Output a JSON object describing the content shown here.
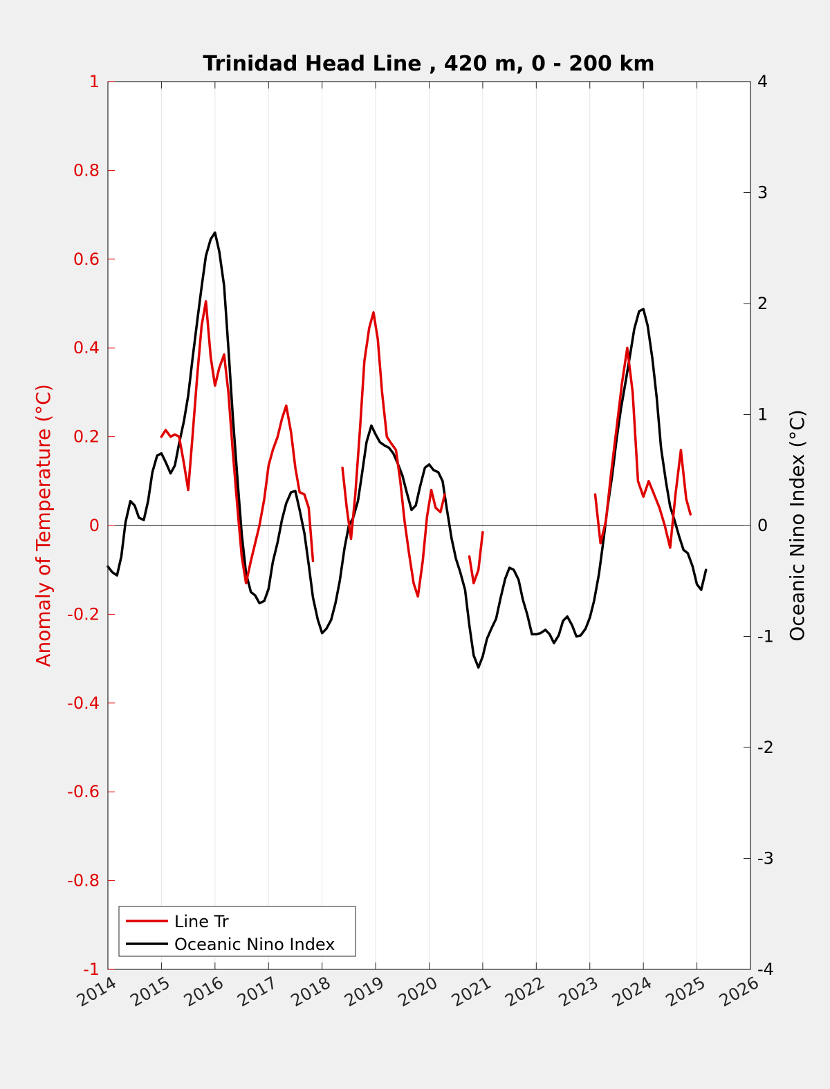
{
  "chart_data": {
    "type": "line",
    "title": "Trinidad Head Line , 420 m, 0 - 200 km",
    "ylabel_left": "Anomaly of Temperature (°C)",
    "ylabel_right": "Oceanic Nino Index (°C)",
    "xlim": [
      2014,
      2026
    ],
    "ylim_left": [
      -1,
      1
    ],
    "ylim_right": [
      -4,
      4
    ],
    "x_ticks": [
      "2014",
      "2015",
      "2016",
      "2017",
      "2018",
      "2019",
      "2020",
      "2021",
      "2022",
      "2023",
      "2024",
      "2025",
      "2026"
    ],
    "y_ticks_left": [
      "1",
      "0.8",
      "0.6",
      "0.4",
      "0.2",
      "0",
      "-0.2",
      "-0.4",
      "-0.6",
      "-0.8",
      "-1"
    ],
    "y_ticks_right": [
      "4",
      "3",
      "2",
      "1",
      "0",
      "-1",
      "-2",
      "-3",
      "-4"
    ],
    "grid": "vertical",
    "zero_line": true,
    "legend_position": "bottom-left",
    "colors": {
      "line_tr": "#e00000",
      "oni": "#000000"
    },
    "series": [
      {
        "name": "Line Tr",
        "axis": "left",
        "color": "#e00000",
        "segments": [
          [
            [
              2015.0,
              0.2
            ],
            [
              2015.08,
              0.215
            ],
            [
              2015.17,
              0.2
            ],
            [
              2015.25,
              0.205
            ],
            [
              2015.33,
              0.2
            ],
            [
              2015.42,
              0.14
            ],
            [
              2015.5,
              0.08
            ],
            [
              2015.58,
              0.2
            ],
            [
              2015.67,
              0.34
            ],
            [
              2015.75,
              0.45
            ],
            [
              2015.83,
              0.505
            ],
            [
              2015.92,
              0.38
            ],
            [
              2016.0,
              0.315
            ],
            [
              2016.08,
              0.355
            ],
            [
              2016.17,
              0.385
            ],
            [
              2016.25,
              0.3
            ],
            [
              2016.33,
              0.17
            ],
            [
              2016.42,
              0.04
            ],
            [
              2016.5,
              -0.07
            ],
            [
              2016.58,
              -0.13
            ],
            [
              2016.67,
              -0.08
            ],
            [
              2016.75,
              -0.04
            ],
            [
              2016.83,
              0.0
            ],
            [
              2016.92,
              0.06
            ],
            [
              2017.0,
              0.135
            ],
            [
              2017.08,
              0.17
            ],
            [
              2017.17,
              0.2
            ],
            [
              2017.25,
              0.24
            ],
            [
              2017.33,
              0.27
            ],
            [
              2017.42,
              0.21
            ],
            [
              2017.5,
              0.13
            ],
            [
              2017.58,
              0.075
            ],
            [
              2017.67,
              0.07
            ],
            [
              2017.75,
              0.04
            ],
            [
              2017.83,
              -0.08
            ]
          ],
          [
            [
              2018.38,
              0.13
            ],
            [
              2018.46,
              0.04
            ],
            [
              2018.54,
              -0.03
            ],
            [
              2018.62,
              0.07
            ],
            [
              2018.71,
              0.22
            ],
            [
              2018.79,
              0.37
            ],
            [
              2018.88,
              0.445
            ],
            [
              2018.96,
              0.48
            ],
            [
              2019.04,
              0.42
            ],
            [
              2019.12,
              0.3
            ],
            [
              2019.21,
              0.2
            ],
            [
              2019.29,
              0.185
            ],
            [
              2019.38,
              0.17
            ],
            [
              2019.46,
              0.1
            ],
            [
              2019.54,
              0.01
            ],
            [
              2019.62,
              -0.06
            ],
            [
              2019.71,
              -0.13
            ],
            [
              2019.79,
              -0.16
            ],
            [
              2019.88,
              -0.08
            ],
            [
              2019.96,
              0.02
            ],
            [
              2020.04,
              0.08
            ],
            [
              2020.12,
              0.04
            ],
            [
              2020.21,
              0.03
            ],
            [
              2020.29,
              0.07
            ]
          ],
          [
            [
              2020.75,
              -0.07
            ],
            [
              2020.83,
              -0.13
            ],
            [
              2020.92,
              -0.1
            ],
            [
              2021.0,
              -0.015
            ]
          ],
          [
            [
              2023.1,
              0.07
            ],
            [
              2023.2,
              -0.04
            ],
            [
              2023.3,
              0.01
            ],
            [
              2023.4,
              0.12
            ],
            [
              2023.5,
              0.22
            ],
            [
              2023.6,
              0.32
            ],
            [
              2023.7,
              0.4
            ],
            [
              2023.8,
              0.3
            ],
            [
              2023.9,
              0.1
            ],
            [
              2024.0,
              0.065
            ],
            [
              2024.1,
              0.1
            ],
            [
              2024.2,
              0.07
            ],
            [
              2024.3,
              0.04
            ],
            [
              2024.4,
              0.0
            ],
            [
              2024.5,
              -0.05
            ],
            [
              2024.6,
              0.07
            ],
            [
              2024.7,
              0.17
            ],
            [
              2024.8,
              0.06
            ],
            [
              2024.88,
              0.025
            ]
          ]
        ]
      },
      {
        "name": "Oceanic Nino Index",
        "axis": "right",
        "color": "#000000",
        "segments": [
          [
            [
              2014.0,
              -0.37
            ],
            [
              2014.08,
              -0.42
            ],
            [
              2014.17,
              -0.45
            ],
            [
              2014.25,
              -0.28
            ],
            [
              2014.33,
              0.03
            ],
            [
              2014.42,
              0.22
            ],
            [
              2014.5,
              0.18
            ],
            [
              2014.58,
              0.07
            ],
            [
              2014.67,
              0.05
            ],
            [
              2014.75,
              0.22
            ],
            [
              2014.83,
              0.48
            ],
            [
              2014.92,
              0.63
            ],
            [
              2015.0,
              0.65
            ],
            [
              2015.08,
              0.57
            ],
            [
              2015.17,
              0.47
            ],
            [
              2015.25,
              0.54
            ],
            [
              2015.33,
              0.74
            ],
            [
              2015.42,
              0.94
            ],
            [
              2015.5,
              1.17
            ],
            [
              2015.58,
              1.5
            ],
            [
              2015.67,
              1.85
            ],
            [
              2015.75,
              2.15
            ],
            [
              2015.83,
              2.43
            ],
            [
              2015.92,
              2.58
            ],
            [
              2016.0,
              2.64
            ],
            [
              2016.08,
              2.47
            ],
            [
              2016.17,
              2.16
            ],
            [
              2016.25,
              1.6
            ],
            [
              2016.33,
              1.0
            ],
            [
              2016.42,
              0.42
            ],
            [
              2016.5,
              -0.08
            ],
            [
              2016.58,
              -0.43
            ],
            [
              2016.67,
              -0.6
            ],
            [
              2016.75,
              -0.63
            ],
            [
              2016.83,
              -0.7
            ],
            [
              2016.92,
              -0.68
            ],
            [
              2017.0,
              -0.57
            ],
            [
              2017.08,
              -0.33
            ],
            [
              2017.17,
              -0.15
            ],
            [
              2017.25,
              0.05
            ],
            [
              2017.33,
              0.2
            ],
            [
              2017.42,
              0.3
            ],
            [
              2017.5,
              0.31
            ],
            [
              2017.58,
              0.14
            ],
            [
              2017.67,
              -0.07
            ],
            [
              2017.75,
              -0.35
            ],
            [
              2017.83,
              -0.65
            ],
            [
              2017.92,
              -0.85
            ],
            [
              2018.0,
              -0.97
            ],
            [
              2018.08,
              -0.93
            ],
            [
              2018.17,
              -0.85
            ],
            [
              2018.25,
              -0.7
            ],
            [
              2018.33,
              -0.5
            ],
            [
              2018.42,
              -0.2
            ],
            [
              2018.5,
              0.0
            ],
            [
              2018.58,
              0.07
            ],
            [
              2018.67,
              0.22
            ],
            [
              2018.75,
              0.48
            ],
            [
              2018.83,
              0.75
            ],
            [
              2018.92,
              0.9
            ],
            [
              2019.0,
              0.82
            ],
            [
              2019.08,
              0.75
            ],
            [
              2019.17,
              0.72
            ],
            [
              2019.25,
              0.7
            ],
            [
              2019.33,
              0.65
            ],
            [
              2019.42,
              0.55
            ],
            [
              2019.5,
              0.45
            ],
            [
              2019.58,
              0.3
            ],
            [
              2019.67,
              0.14
            ],
            [
              2019.75,
              0.18
            ],
            [
              2019.83,
              0.35
            ],
            [
              2019.92,
              0.52
            ],
            [
              2020.0,
              0.55
            ],
            [
              2020.08,
              0.5
            ],
            [
              2020.17,
              0.48
            ],
            [
              2020.25,
              0.4
            ],
            [
              2020.33,
              0.15
            ],
            [
              2020.42,
              -0.12
            ],
            [
              2020.5,
              -0.3
            ],
            [
              2020.58,
              -0.42
            ],
            [
              2020.67,
              -0.58
            ],
            [
              2020.75,
              -0.9
            ],
            [
              2020.83,
              -1.17
            ],
            [
              2020.92,
              -1.28
            ],
            [
              2021.0,
              -1.18
            ],
            [
              2021.08,
              -1.02
            ],
            [
              2021.17,
              -0.92
            ],
            [
              2021.25,
              -0.84
            ],
            [
              2021.33,
              -0.66
            ],
            [
              2021.42,
              -0.48
            ],
            [
              2021.5,
              -0.38
            ],
            [
              2021.58,
              -0.4
            ],
            [
              2021.67,
              -0.49
            ],
            [
              2021.75,
              -0.67
            ],
            [
              2021.83,
              -0.8
            ],
            [
              2021.92,
              -0.98
            ],
            [
              2022.0,
              -0.98
            ],
            [
              2022.08,
              -0.97
            ],
            [
              2022.17,
              -0.94
            ],
            [
              2022.25,
              -0.98
            ],
            [
              2022.33,
              -1.06
            ],
            [
              2022.42,
              -0.99
            ],
            [
              2022.5,
              -0.86
            ],
            [
              2022.58,
              -0.82
            ],
            [
              2022.67,
              -0.9
            ],
            [
              2022.75,
              -1.0
            ],
            [
              2022.83,
              -0.99
            ],
            [
              2022.92,
              -0.93
            ],
            [
              2023.0,
              -0.83
            ],
            [
              2023.08,
              -0.68
            ],
            [
              2023.17,
              -0.44
            ],
            [
              2023.25,
              -0.15
            ],
            [
              2023.33,
              0.16
            ],
            [
              2023.42,
              0.46
            ],
            [
              2023.5,
              0.78
            ],
            [
              2023.58,
              1.05
            ],
            [
              2023.67,
              1.3
            ],
            [
              2023.75,
              1.53
            ],
            [
              2023.83,
              1.77
            ],
            [
              2023.92,
              1.93
            ],
            [
              2024.0,
              1.95
            ],
            [
              2024.08,
              1.8
            ],
            [
              2024.17,
              1.5
            ],
            [
              2024.25,
              1.15
            ],
            [
              2024.33,
              0.7
            ],
            [
              2024.42,
              0.4
            ],
            [
              2024.5,
              0.17
            ],
            [
              2024.58,
              0.05
            ],
            [
              2024.67,
              -0.1
            ],
            [
              2024.75,
              -0.22
            ],
            [
              2024.83,
              -0.25
            ],
            [
              2024.92,
              -0.37
            ],
            [
              2025.0,
              -0.53
            ],
            [
              2025.08,
              -0.58
            ],
            [
              2025.17,
              -0.4
            ]
          ]
        ]
      }
    ]
  }
}
